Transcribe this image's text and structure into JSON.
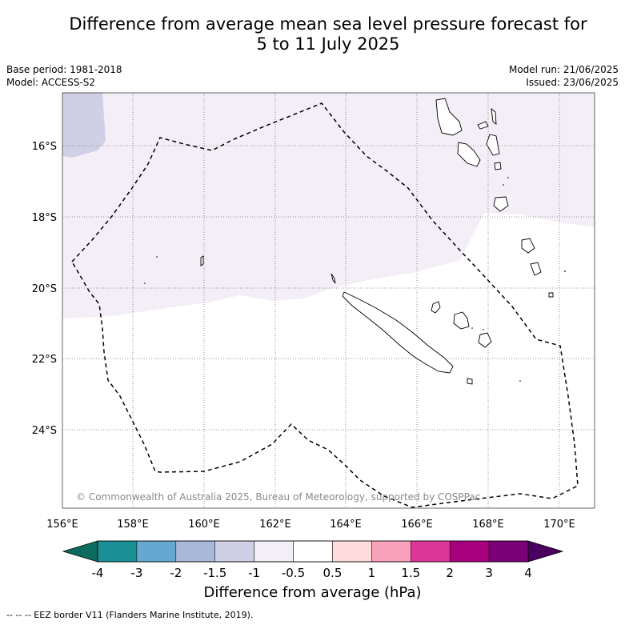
{
  "title": {
    "line1": "Difference from average mean sea level pressure forecast for",
    "line2": "5 to 11 July 2025"
  },
  "meta": {
    "base_period": "Base period: 1981-2018",
    "model": "Model: ACCESS-S2",
    "model_run": "Model run: 21/06/2025",
    "issued": "Issued: 23/06/2025"
  },
  "map": {
    "lat_labels": [
      "16°S",
      "18°S",
      "20°S",
      "22°S",
      "24°S"
    ],
    "lon_labels": [
      "156°E",
      "158°E",
      "160°E",
      "162°E",
      "164°E",
      "166°E",
      "168°E",
      "170°E"
    ],
    "copyright": "© Commonwealth of Australia 2025, Bureau of Meteorology, supported by COSPPac"
  },
  "colorbar": {
    "title": "Difference from average (hPa)",
    "ticks": [
      "-4",
      "-3",
      "-2",
      "-1.5",
      "-1",
      "-0.5",
      "0.5",
      "1",
      "1.5",
      "2",
      "3",
      "4"
    ],
    "colors": [
      "#1a8f96",
      "#67a8d0",
      "#a7b8d8",
      "#cfd0e6",
      "#f4eef6",
      "#ffffff",
      "#fedcdc",
      "#f9a0ba",
      "#dd3598",
      "#a8007e",
      "#7a0078"
    ],
    "under_color": "#0b6b5e",
    "over_color": "#4a0060"
  },
  "footer": {
    "legend_line": "-- -- -- EEZ border V11 (Flanders Marine Institute, 2019)."
  }
}
